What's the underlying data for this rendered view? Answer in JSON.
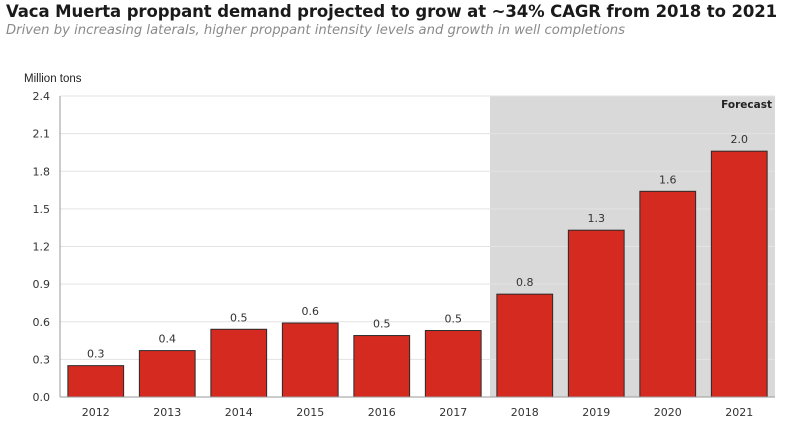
{
  "header": {
    "title": "Vaca Muerta proppant demand projected to grow at ~34% CAGR from 2018 to 2021",
    "subtitle": "Driven by increasing laterals, higher proppant intensity levels and growth in well completions"
  },
  "colors": {
    "bar": "#d42a1f",
    "bar_stroke": "#2a2a2a",
    "forecast_band": "#d9d9d9",
    "gridline": "#e3e3e3"
  },
  "chart_data": {
    "type": "bar",
    "title": "Vaca Muerta proppant demand projected to grow at ~34% CAGR from 2018 to 2021",
    "ylabel": "Million tons",
    "xlabel": "",
    "categories": [
      "2012",
      "2013",
      "2014",
      "2015",
      "2016",
      "2017",
      "2018",
      "2019",
      "2020",
      "2021"
    ],
    "values": [
      0.25,
      0.37,
      0.54,
      0.59,
      0.49,
      0.53,
      0.82,
      1.33,
      1.64,
      1.96
    ],
    "data_labels": [
      "0.3",
      "0.4",
      "0.5",
      "0.6",
      "0.5",
      "0.5",
      "0.8",
      "1.3",
      "1.6",
      "2.0"
    ],
    "ylim": [
      0,
      2.4
    ],
    "yticks": [
      0.0,
      0.3,
      0.6,
      0.9,
      1.2,
      1.5,
      1.8,
      2.1,
      2.4
    ],
    "ytick_labels": [
      "0.0",
      "0.3",
      "0.6",
      "0.9",
      "1.2",
      "1.5",
      "1.8",
      "2.1",
      "2.4"
    ],
    "grid": true,
    "forecast": {
      "label": "Forecast",
      "start_category": "2018",
      "end_category": "2021"
    }
  }
}
